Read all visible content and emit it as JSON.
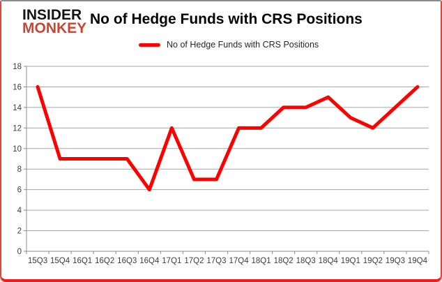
{
  "logo": {
    "line1": "INSIDER",
    "line2": "MONKEY"
  },
  "header": {
    "title": "No of Hedge Funds with CRS Positions"
  },
  "legend": {
    "label": "No of Hedge Funds with CRS Positions"
  },
  "chart_data": {
    "type": "line",
    "title": "No of Hedge Funds with CRS Positions",
    "categories": [
      "15Q3",
      "15Q4",
      "16Q1",
      "16Q2",
      "16Q3",
      "16Q4",
      "17Q1",
      "17Q2",
      "17Q3",
      "17Q4",
      "18Q1",
      "18Q2",
      "18Q3",
      "18Q4",
      "19Q1",
      "19Q2",
      "19Q3",
      "19Q4"
    ],
    "series": [
      {
        "name": "No of Hedge Funds with CRS Positions",
        "color": "#ff0000",
        "values": [
          16,
          9,
          9,
          9,
          9,
          6,
          12,
          7,
          7,
          12,
          12,
          14,
          14,
          15,
          13,
          12,
          14,
          16
        ]
      }
    ],
    "xlabel": "",
    "ylabel": "",
    "ylim": [
      0,
      18
    ],
    "ytick_step": 2,
    "grid": true,
    "legend_position": "top",
    "colors": {
      "line": "#ff0000",
      "gridline": "#a6a6a6",
      "axis": "#8c8c8c",
      "tick_text": "#3d3d3d",
      "logo_accent": "#c74634",
      "frame_border": "#ee1c1c"
    }
  }
}
